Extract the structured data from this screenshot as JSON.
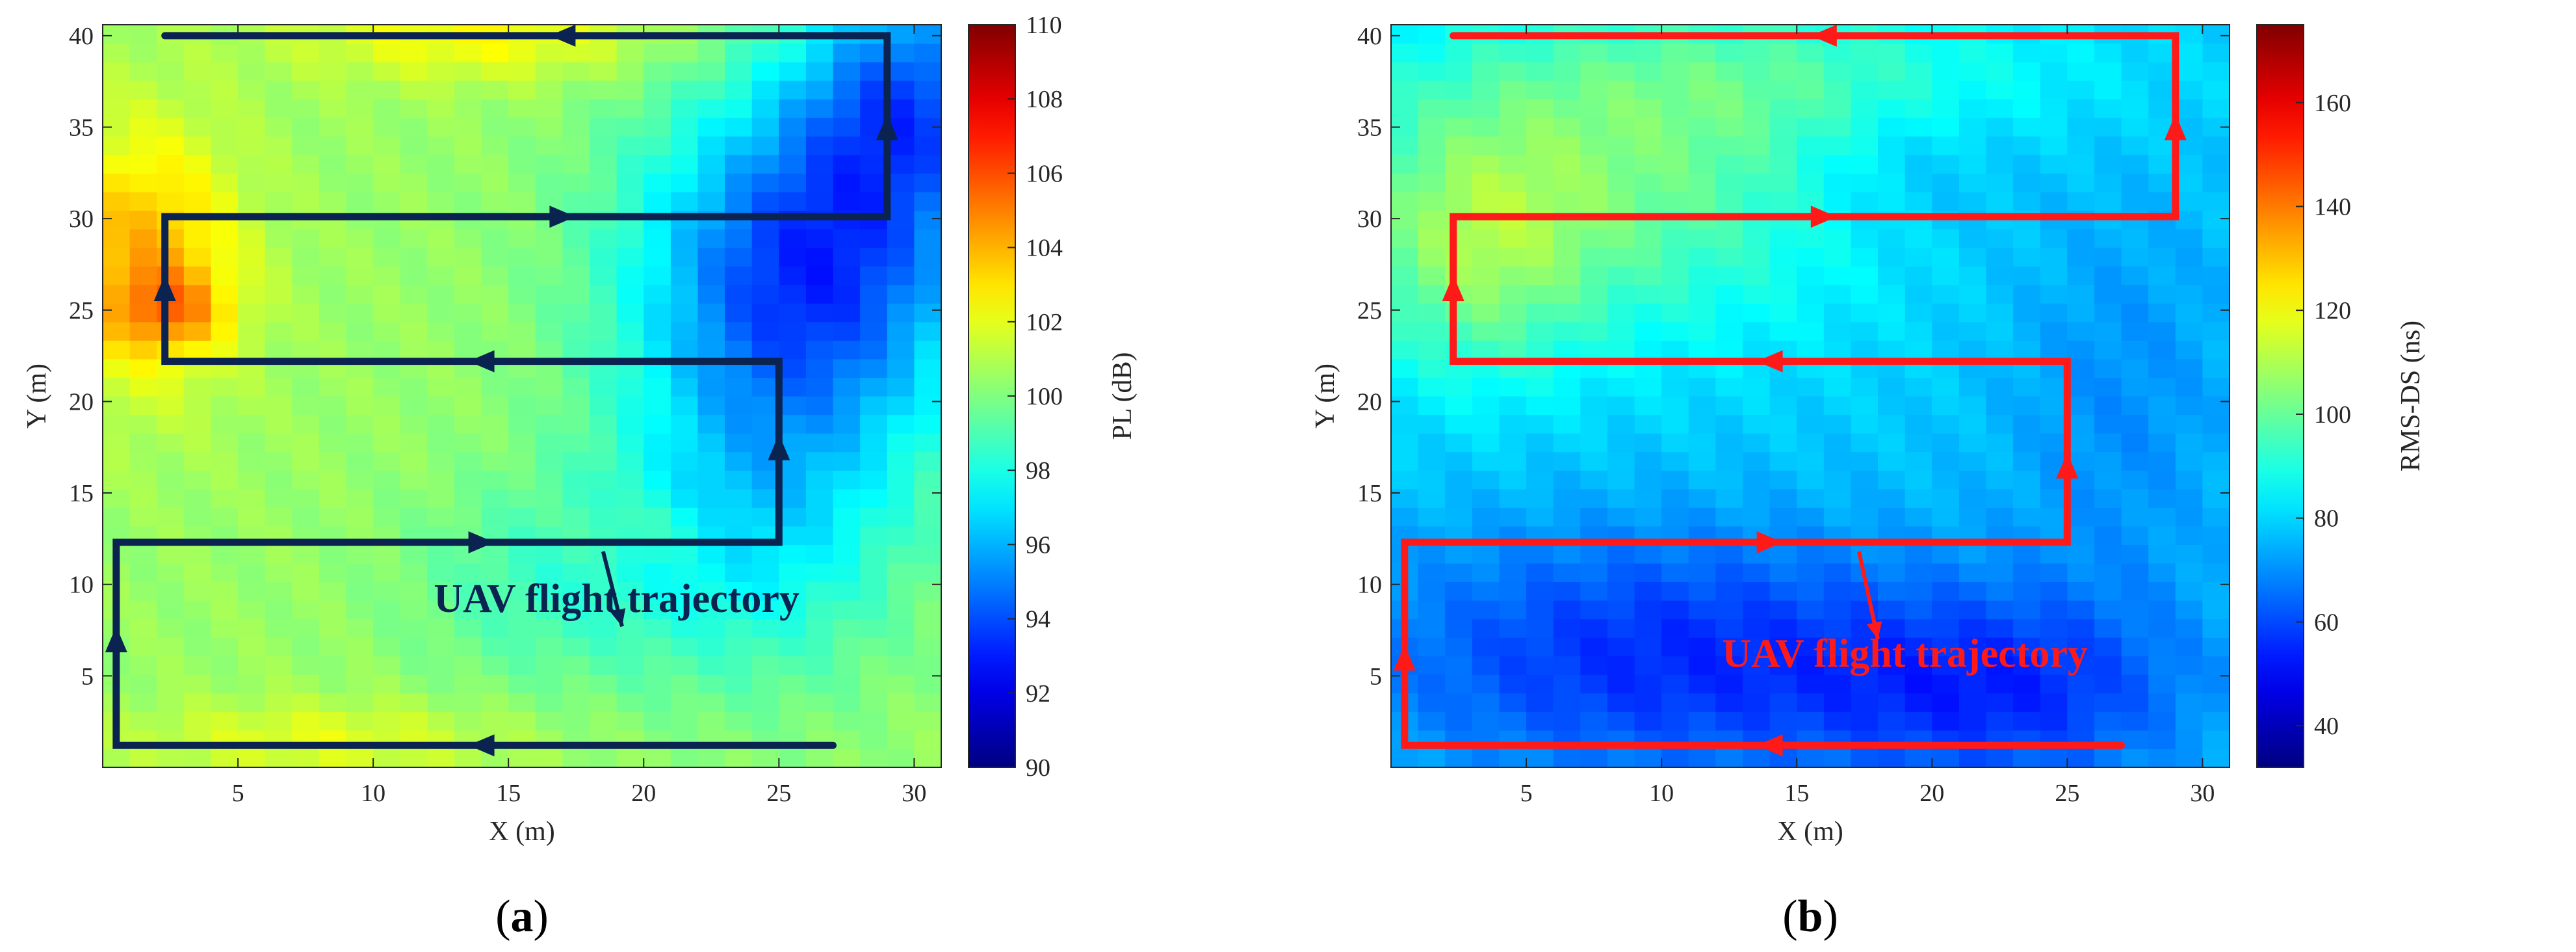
{
  "chart_data": [
    {
      "type": "heatmap",
      "panel_label": "(a)",
      "panel_letter": "a",
      "xlabel": "X (m)",
      "ylabel": "Y (m)",
      "colorbar_label": "PL (dB)",
      "xlim": [
        0,
        31
      ],
      "ylim": [
        0,
        40.6
      ],
      "xticks": [
        5,
        10,
        15,
        20,
        25,
        30
      ],
      "yticks": [
        5,
        10,
        15,
        20,
        25,
        30,
        35,
        40
      ],
      "clim": [
        90,
        110
      ],
      "cticks": [
        90,
        92,
        94,
        96,
        98,
        100,
        102,
        104,
        106,
        108,
        110
      ],
      "colormap": "jet",
      "grid": false,
      "field": {
        "base": 100.5,
        "blobs": [
          {
            "x": 26,
            "y": 27,
            "sx": 4.5,
            "sy": 7.0,
            "a": -7.0
          },
          {
            "x": 30,
            "y": 37,
            "sx": 3.0,
            "sy": 5.0,
            "a": -5.0
          },
          {
            "x": 24,
            "y": 13,
            "sx": 4.0,
            "sy": 6.0,
            "a": -3.0
          },
          {
            "x": 16,
            "y": 10,
            "sx": 3.5,
            "sy": 4.0,
            "a": -1.5
          },
          {
            "x": 1.5,
            "y": 28,
            "sx": 2.5,
            "sy": 5.0,
            "a": 3.5
          },
          {
            "x": 2.5,
            "y": 25,
            "sx": 1.5,
            "sy": 1.5,
            "a": 2.5
          },
          {
            "x": 14,
            "y": 40,
            "sx": 5.0,
            "sy": 1.8,
            "a": 2.0
          },
          {
            "x": 8,
            "y": 1.5,
            "sx": 5.0,
            "sy": 1.5,
            "a": 1.5
          },
          {
            "x": 20,
            "y": 13,
            "sx": 2.0,
            "sy": 1.2,
            "a": 1.0
          }
        ]
      },
      "trajectory": {
        "name": "UAV flight trajectory",
        "color": "#0b2350",
        "path": [
          [
            27,
            1.2
          ],
          [
            0.5,
            1.2
          ],
          [
            0.5,
            12.3
          ],
          [
            25,
            12.3
          ],
          [
            25,
            22.2
          ],
          [
            2.3,
            22.2
          ],
          [
            2.3,
            30.1
          ],
          [
            29,
            30.1
          ],
          [
            29,
            40
          ],
          [
            2.3,
            40
          ]
        ],
        "arrows": [
          {
            "x": 14,
            "y": 1.2,
            "dir": "left"
          },
          {
            "x": 0.5,
            "y": 7,
            "dir": "up"
          },
          {
            "x": 14,
            "y": 12.3,
            "dir": "right"
          },
          {
            "x": 25,
            "y": 17.5,
            "dir": "up"
          },
          {
            "x": 14,
            "y": 22.2,
            "dir": "left"
          },
          {
            "x": 2.3,
            "y": 26.2,
            "dir": "up"
          },
          {
            "x": 17,
            "y": 30.1,
            "dir": "right"
          },
          {
            "x": 29,
            "y": 35,
            "dir": "up"
          },
          {
            "x": 17,
            "y": 40,
            "dir": "left"
          }
        ],
        "annotation_text_at": [
          19,
          8.5
        ],
        "annotation_arrow_from": [
          18.5,
          11.8
        ],
        "annotation_arrow_to": [
          19.2,
          7.7
        ]
      }
    },
    {
      "type": "heatmap",
      "panel_label": "(b)",
      "panel_letter": "b",
      "xlabel": "X (m)",
      "ylabel": "Y (m)",
      "colorbar_label": "RMS-DS (ns)",
      "xlim": [
        0,
        31
      ],
      "ylim": [
        0,
        40.6
      ],
      "xticks": [
        5,
        10,
        15,
        20,
        25,
        30
      ],
      "yticks": [
        5,
        10,
        15,
        20,
        25,
        30,
        35,
        40
      ],
      "clim": [
        32,
        175
      ],
      "cticks": [
        40,
        60,
        80,
        100,
        120,
        140,
        160
      ],
      "colormap": "jet",
      "grid": false,
      "field": {
        "base": 78,
        "blobs": [
          {
            "x": 8,
            "y": 32,
            "sx": 7.0,
            "sy": 6.0,
            "a": 22
          },
          {
            "x": 3,
            "y": 28,
            "sx": 3.0,
            "sy": 5.0,
            "a": 18
          },
          {
            "x": 15,
            "y": 38,
            "sx": 8.0,
            "sy": 3.0,
            "a": 12
          },
          {
            "x": 10,
            "y": 6,
            "sx": 8.0,
            "sy": 5.0,
            "a": -22
          },
          {
            "x": 23,
            "y": 4,
            "sx": 5.0,
            "sy": 4.0,
            "a": -18
          },
          {
            "x": 27,
            "y": 20,
            "sx": 3.0,
            "sy": 8.0,
            "a": -8
          },
          {
            "x": 19,
            "y": 33,
            "sx": 3.0,
            "sy": 3.0,
            "a": -6
          }
        ]
      },
      "trajectory": {
        "name": "UAV flight trajectory",
        "color": "#ff1a1a",
        "path": [
          [
            27,
            1.2
          ],
          [
            0.5,
            1.2
          ],
          [
            0.5,
            12.3
          ],
          [
            25,
            12.3
          ],
          [
            25,
            22.2
          ],
          [
            2.3,
            22.2
          ],
          [
            2.3,
            30.1
          ],
          [
            29,
            30.1
          ],
          [
            29,
            40
          ],
          [
            2.3,
            40
          ]
        ],
        "arrows": [
          {
            "x": 14,
            "y": 1.2,
            "dir": "left"
          },
          {
            "x": 0.5,
            "y": 6,
            "dir": "up"
          },
          {
            "x": 14,
            "y": 12.3,
            "dir": "right"
          },
          {
            "x": 25,
            "y": 16.5,
            "dir": "up"
          },
          {
            "x": 14,
            "y": 22.2,
            "dir": "left"
          },
          {
            "x": 2.3,
            "y": 26.2,
            "dir": "up"
          },
          {
            "x": 16,
            "y": 30.1,
            "dir": "right"
          },
          {
            "x": 29,
            "y": 35,
            "dir": "up"
          },
          {
            "x": 16,
            "y": 40,
            "dir": "left"
          }
        ],
        "annotation_text_at": [
          19,
          5.5
        ],
        "annotation_arrow_from": [
          17.3,
          11.8
        ],
        "annotation_arrow_to": [
          18,
          7
        ]
      }
    }
  ]
}
